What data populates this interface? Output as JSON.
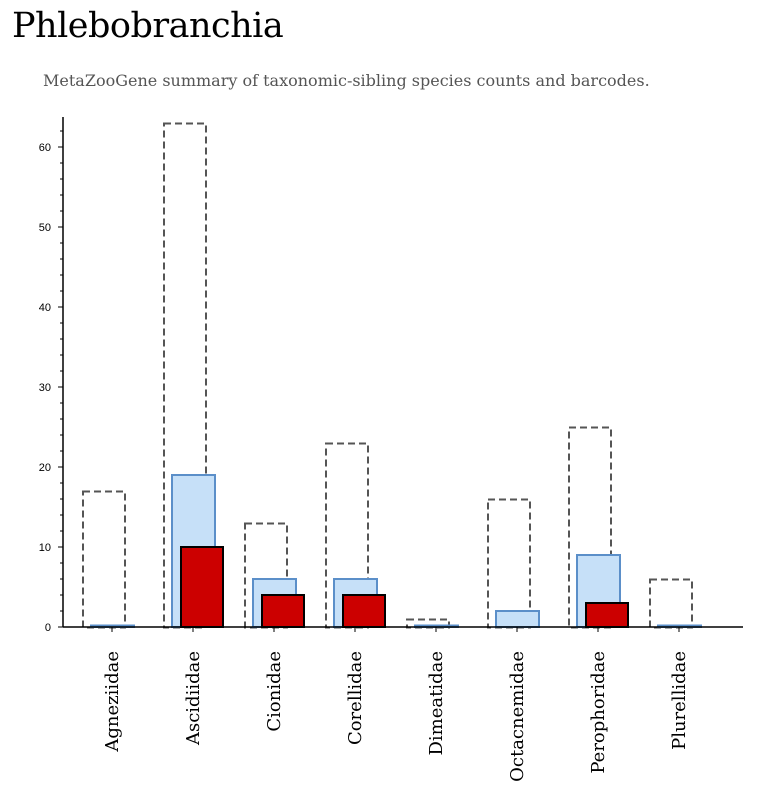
{
  "title": "Phlebobranchia",
  "subtitle": "MetaZooGene summary of taxonomic-sibling species counts and barcodes.",
  "colors": {
    "species_outline": "#555555",
    "sequenced_fill": "#c6e0f8",
    "sequenced_stroke": "#5b8fc9",
    "barcoded_fill": "#cc0000",
    "barcoded_stroke": "#000000"
  },
  "chart_data": {
    "type": "bar",
    "categories": [
      "Agneziidae",
      "Ascidiidae",
      "Cionidae",
      "Corellidae",
      "Dimeatidae",
      "Octacnemidae",
      "Perophoridae",
      "Plurellidae"
    ],
    "series": [
      {
        "values": [
          17,
          63,
          13,
          23,
          1,
          16,
          25,
          6
        ]
      },
      {
        "values": [
          0,
          19,
          6,
          6,
          0,
          2,
          9,
          0
        ]
      },
      {
        "values": [
          0,
          10,
          4,
          4,
          0,
          0,
          3,
          0
        ]
      }
    ],
    "ylim": [
      0,
      64
    ],
    "yticks": [
      0,
      10,
      20,
      30,
      40,
      50,
      60
    ],
    "xlabel": "",
    "ylabel": "",
    "grid": false
  }
}
